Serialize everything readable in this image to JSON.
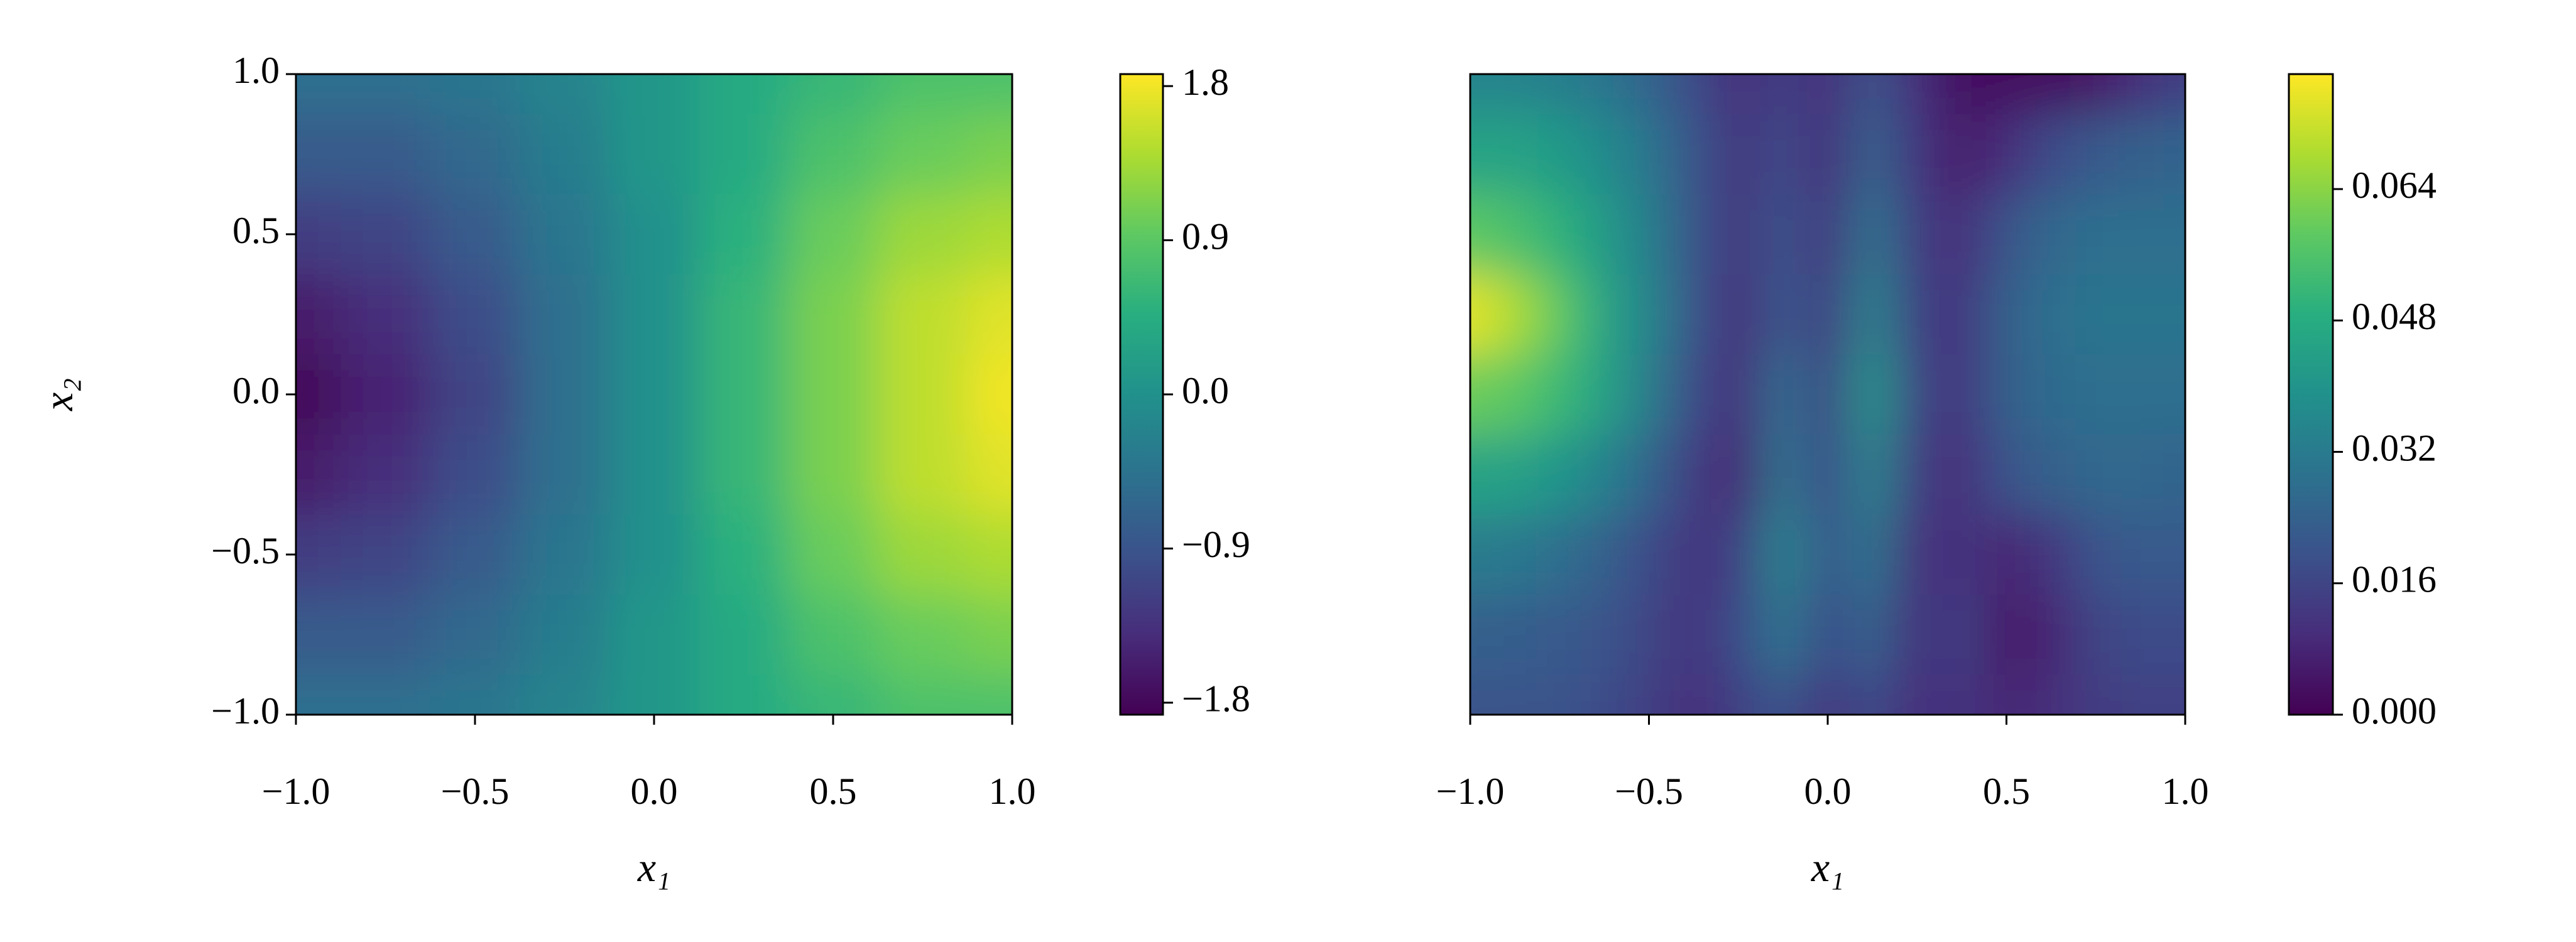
{
  "chart_data": [
    {
      "type": "contour",
      "colormap": "viridis",
      "xlabel": "x₁",
      "ylabel": "x₂",
      "xlim": [
        -1,
        1
      ],
      "ylim": [
        -1,
        1
      ],
      "xticks": [
        {
          "value": -1,
          "label": "−1.0"
        },
        {
          "value": -0.5,
          "label": "−0.5"
        },
        {
          "value": 0,
          "label": "0.0"
        },
        {
          "value": 0.5,
          "label": "0.5"
        },
        {
          "value": 1,
          "label": "1.0"
        }
      ],
      "yticks": [
        {
          "value": -1,
          "label": "−1.0"
        },
        {
          "value": -0.5,
          "label": "−0.5"
        },
        {
          "value": 0,
          "label": "0.0"
        },
        {
          "value": 0.5,
          "label": "0.5"
        },
        {
          "value": 1,
          "label": "1.0"
        }
      ],
      "zlim": [
        -1.87,
        1.87
      ],
      "zticks": [
        {
          "value": -1.8,
          "label": "−1.8"
        },
        {
          "value": -0.9,
          "label": "−0.9"
        },
        {
          "value": 0,
          "label": "0.0"
        },
        0.9,
        1.8
      ],
      "x": [
        -1,
        -0.75,
        -0.5,
        -0.25,
        0,
        0.25,
        0.5,
        0.75,
        1
      ],
      "y": [
        1,
        0.75,
        0.5,
        0.25,
        0,
        -0.25,
        -0.5,
        -0.75,
        -1
      ],
      "z": [
        [
          -0.5,
          -0.5,
          -0.4,
          -0.2,
          0.1,
          0.4,
          0.6,
          0.8,
          0.8
        ],
        [
          -0.8,
          -0.8,
          -0.6,
          -0.3,
          0.1,
          0.4,
          0.8,
          1.0,
          1.1
        ],
        [
          -1.2,
          -1.1,
          -0.8,
          -0.4,
          0.0,
          0.5,
          1.0,
          1.3,
          1.4
        ],
        [
          -1.6,
          -1.4,
          -1.0,
          -0.5,
          0.0,
          0.6,
          1.1,
          1.5,
          1.7
        ],
        [
          -1.8,
          -1.5,
          -1.1,
          -0.5,
          0.0,
          0.6,
          1.1,
          1.5,
          1.8
        ],
        [
          -1.6,
          -1.4,
          -1.0,
          -0.5,
          0.0,
          0.6,
          1.1,
          1.5,
          1.7
        ],
        [
          -1.2,
          -1.1,
          -0.8,
          -0.4,
          0.0,
          0.5,
          1.0,
          1.3,
          1.4
        ],
        [
          -0.8,
          -0.8,
          -0.6,
          -0.3,
          0.1,
          0.4,
          0.8,
          1.0,
          1.1
        ],
        [
          -0.5,
          -0.5,
          -0.4,
          -0.2,
          0.1,
          0.4,
          0.6,
          0.8,
          0.8
        ]
      ]
    },
    {
      "type": "contour",
      "colormap": "viridis",
      "xlabel": "x₁",
      "xlim": [
        -1,
        1
      ],
      "ylim": [
        -1,
        1
      ],
      "xticks": [
        {
          "value": -1,
          "label": "−1.0"
        },
        {
          "value": -0.5,
          "label": "−0.5"
        },
        {
          "value": 0,
          "label": "0.0"
        },
        {
          "value": 0.5,
          "label": "0.5"
        },
        {
          "value": 1,
          "label": "1.0"
        }
      ],
      "zlim": [
        0,
        0.078
      ],
      "zticks": [
        {
          "value": 0,
          "label": "0.000"
        },
        {
          "value": 0.016,
          "label": "0.016"
        },
        {
          "value": 0.032,
          "label": "0.032"
        },
        {
          "value": 0.048,
          "label": "0.048"
        },
        {
          "value": 0.064,
          "label": "0.064"
        }
      ],
      "x": [
        -1,
        -0.875,
        -0.75,
        -0.625,
        -0.5,
        -0.375,
        -0.25,
        -0.125,
        0,
        0.125,
        0.25,
        0.375,
        0.5,
        0.625,
        0.75,
        0.875,
        1
      ],
      "y": [
        1,
        0.75,
        0.5,
        0.25,
        0,
        -0.25,
        -0.5,
        -0.75,
        -1
      ],
      "z": [
        [
          0.035,
          0.035,
          0.033,
          0.03,
          0.025,
          0.018,
          0.01,
          0.015,
          0.01,
          0.02,
          0.01,
          0.003,
          0.003,
          0.003,
          0.005,
          0.01,
          0.015
        ],
        [
          0.045,
          0.045,
          0.042,
          0.037,
          0.03,
          0.02,
          0.012,
          0.018,
          0.01,
          0.025,
          0.012,
          0.006,
          0.01,
          0.018,
          0.022,
          0.024,
          0.025
        ],
        [
          0.058,
          0.055,
          0.05,
          0.042,
          0.033,
          0.02,
          0.012,
          0.02,
          0.012,
          0.03,
          0.014,
          0.01,
          0.02,
          0.026,
          0.028,
          0.028,
          0.028
        ],
        [
          0.075,
          0.068,
          0.058,
          0.045,
          0.035,
          0.02,
          0.01,
          0.022,
          0.014,
          0.035,
          0.015,
          0.012,
          0.024,
          0.028,
          0.03,
          0.03,
          0.03
        ],
        [
          0.06,
          0.058,
          0.052,
          0.044,
          0.032,
          0.018,
          0.01,
          0.028,
          0.016,
          0.04,
          0.016,
          0.012,
          0.024,
          0.027,
          0.028,
          0.028,
          0.028
        ],
        [
          0.045,
          0.044,
          0.04,
          0.034,
          0.025,
          0.014,
          0.008,
          0.03,
          0.018,
          0.035,
          0.014,
          0.01,
          0.02,
          0.024,
          0.026,
          0.026,
          0.025
        ],
        [
          0.032,
          0.031,
          0.028,
          0.024,
          0.018,
          0.012,
          0.015,
          0.035,
          0.02,
          0.03,
          0.01,
          0.012,
          0.008,
          0.012,
          0.02,
          0.022,
          0.022
        ],
        [
          0.024,
          0.023,
          0.022,
          0.02,
          0.016,
          0.012,
          0.018,
          0.03,
          0.018,
          0.025,
          0.01,
          0.015,
          0.005,
          0.008,
          0.016,
          0.018,
          0.018
        ],
        [
          0.02,
          0.02,
          0.02,
          0.018,
          0.015,
          0.01,
          0.015,
          0.02,
          0.012,
          0.018,
          0.01,
          0.012,
          0.008,
          0.01,
          0.014,
          0.015,
          0.015
        ]
      ]
    }
  ]
}
